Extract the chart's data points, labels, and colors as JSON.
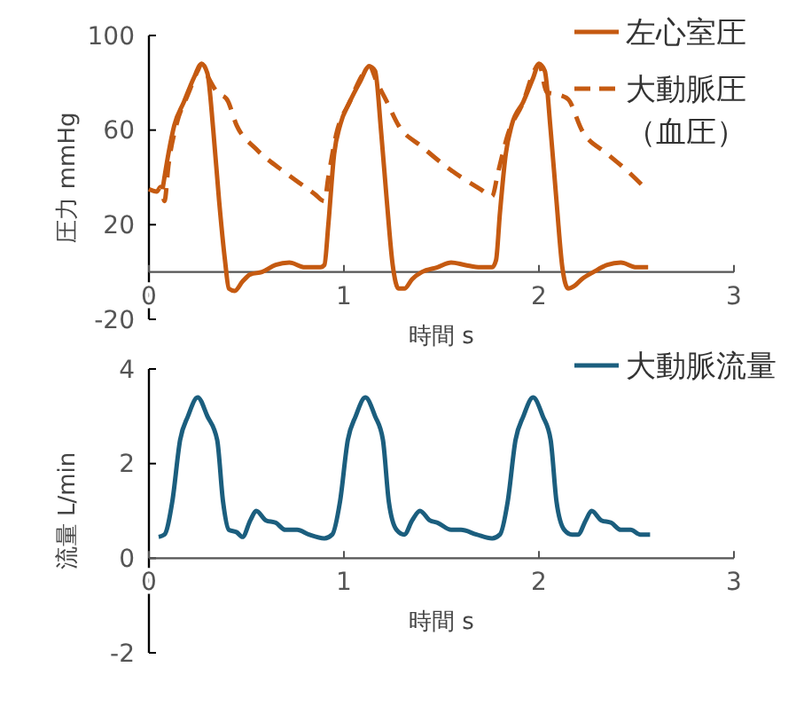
{
  "chart_data": [
    {
      "type": "line",
      "xlabel": "時間 s",
      "ylabel": "圧力 mmHg",
      "xlim": [
        0,
        3
      ],
      "xticks": [
        0,
        1,
        2,
        3
      ],
      "ylim": [
        -20,
        100
      ],
      "yticks": [
        -20,
        20,
        60,
        100
      ],
      "grid": false,
      "legend": "top right",
      "series": [
        {
          "name": "左心室圧",
          "color": "#c55a11",
          "line_style": "solid",
          "x": [
            0.07,
            0.1,
            0.13,
            0.18,
            0.23,
            0.27,
            0.3,
            0.33,
            0.36,
            0.39,
            0.41,
            0.44,
            0.48,
            0.52,
            0.58,
            0.65,
            0.72,
            0.8,
            0.88,
            0.9,
            0.92,
            0.95,
            0.98,
            1.03,
            1.08,
            1.13,
            1.16,
            1.19,
            1.22,
            1.25,
            1.28,
            1.31,
            1.35,
            1.4,
            1.48,
            1.55,
            1.62,
            1.7,
            1.76,
            1.78,
            1.8,
            1.83,
            1.86,
            1.92,
            1.97,
            2.0,
            2.03,
            2.06,
            2.09,
            2.12,
            2.15,
            2.18,
            2.22,
            2.28,
            2.35,
            2.42,
            2.5,
            2.56
          ],
          "values": [
            35,
            50,
            62,
            72,
            82,
            88,
            84,
            60,
            30,
            5,
            -7,
            -8,
            -4,
            -1,
            0,
            3,
            4,
            2,
            2,
            3,
            20,
            50,
            62,
            72,
            80,
            87,
            85,
            60,
            30,
            3,
            -7,
            -7,
            -3,
            0,
            2,
            4,
            3,
            2,
            2,
            5,
            25,
            50,
            62,
            72,
            82,
            88,
            85,
            60,
            30,
            2,
            -7,
            -6,
            -3,
            0,
            3,
            4,
            2,
            2
          ]
        },
        {
          "name": "大動脈圧（血圧）",
          "color": "#c55a11",
          "line_style": "dashed",
          "x": [
            0,
            0.04,
            0.06,
            0.08,
            0.1,
            0.14,
            0.2,
            0.25,
            0.27,
            0.3,
            0.35,
            0.4,
            0.45,
            0.55,
            0.7,
            0.85,
            0.9,
            0.92,
            0.96,
            1.03,
            1.1,
            1.13,
            1.17,
            1.22,
            1.28,
            1.4,
            1.55,
            1.7,
            1.76,
            1.79,
            1.84,
            1.92,
            1.97,
            2.0,
            2.04,
            2.1,
            2.15,
            2.22,
            2.35,
            2.45,
            2.55
          ],
          "values": [
            35,
            34,
            36,
            30,
            45,
            62,
            75,
            85,
            88,
            83,
            76,
            73,
            62,
            52,
            42,
            33,
            30,
            40,
            58,
            72,
            84,
            87,
            80,
            72,
            62,
            53,
            43,
            35,
            32,
            42,
            58,
            72,
            84,
            88,
            76,
            75,
            73,
            60,
            50,
            43,
            35
          ]
        }
      ]
    },
    {
      "type": "line",
      "xlabel": "時間 s",
      "ylabel": "流量  L/min",
      "xlim": [
        0,
        3
      ],
      "xticks": [
        0,
        1,
        2,
        3
      ],
      "ylim": [
        -2,
        4
      ],
      "yticks": [
        -2,
        0,
        2,
        4
      ],
      "grid": false,
      "legend": "top right",
      "series": [
        {
          "name": "大動脈流量",
          "color": "#1b5e7e",
          "line_style": "solid",
          "x": [
            0.05,
            0.08,
            0.12,
            0.16,
            0.2,
            0.25,
            0.3,
            0.35,
            0.38,
            0.41,
            0.45,
            0.48,
            0.52,
            0.55,
            0.6,
            0.65,
            0.7,
            0.76,
            0.82,
            0.9,
            0.94,
            0.98,
            1.02,
            1.06,
            1.11,
            1.16,
            1.2,
            1.23,
            1.27,
            1.31,
            1.35,
            1.39,
            1.44,
            1.48,
            1.55,
            1.6,
            1.68,
            1.76,
            1.8,
            1.84,
            1.88,
            1.92,
            1.97,
            2.02,
            2.06,
            2.09,
            2.13,
            2.17,
            2.2,
            2.24,
            2.27,
            2.32,
            2.37,
            2.42,
            2.47,
            2.52,
            2.57
          ],
          "values": [
            0.45,
            0.5,
            1.2,
            2.5,
            3.0,
            3.4,
            3.0,
            2.5,
            1.2,
            0.6,
            0.55,
            0.45,
            0.8,
            1.0,
            0.8,
            0.75,
            0.6,
            0.6,
            0.5,
            0.42,
            0.5,
            1.2,
            2.5,
            3.0,
            3.4,
            3.0,
            2.5,
            1.2,
            0.6,
            0.5,
            0.8,
            1.0,
            0.8,
            0.75,
            0.6,
            0.6,
            0.5,
            0.42,
            0.5,
            1.2,
            2.5,
            3.0,
            3.4,
            3.0,
            2.5,
            1.2,
            0.6,
            0.5,
            0.5,
            0.8,
            1.0,
            0.8,
            0.75,
            0.6,
            0.6,
            0.5,
            0.5
          ]
        }
      ]
    }
  ]
}
